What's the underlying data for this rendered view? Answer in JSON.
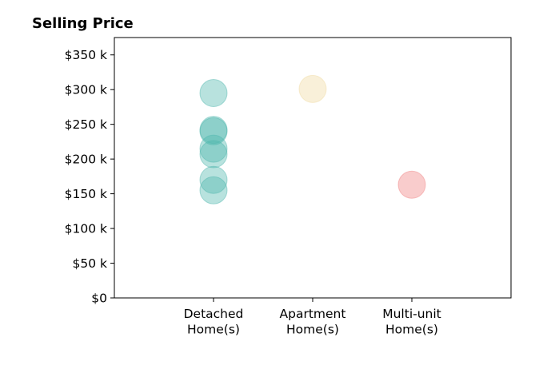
{
  "chart_data": {
    "type": "scatter",
    "title": "Selling Price",
    "xlabel": "",
    "ylabel": "",
    "categories": [
      [
        "Detached",
        "Home(s)"
      ],
      [
        "Apartment",
        "Home(s)"
      ],
      [
        "Multi-unit",
        "Home(s)"
      ]
    ],
    "xlim": [
      -1,
      3
    ],
    "ylim": [
      0,
      375000
    ],
    "yticks": [
      0,
      50000,
      100000,
      150000,
      200000,
      250000,
      300000,
      350000
    ],
    "ytick_labels": [
      "$0",
      "$50 k",
      "$100 k",
      "$150 k",
      "$200 k",
      "$250 k",
      "$300 k",
      "$350 k"
    ],
    "grid": false,
    "series": [
      {
        "category_index": 0,
        "color": "#4db6ac",
        "values": [
          295000,
          242000,
          240000,
          215000,
          207000,
          170000,
          155000
        ]
      },
      {
        "category_index": 1,
        "color": "#f0d9a0",
        "values": [
          301000
        ]
      },
      {
        "category_index": 2,
        "color": "#f08080",
        "values": [
          163000
        ]
      }
    ]
  }
}
